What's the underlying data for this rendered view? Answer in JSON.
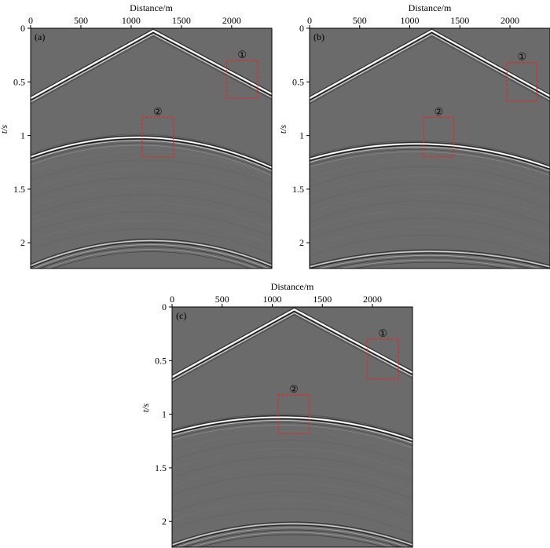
{
  "colors": {
    "background": "#6b6b6b",
    "event": "#ffffff",
    "box": "#e8251f"
  },
  "panels": [
    {
      "label": "(a)",
      "xlabel": "Distance/m",
      "ylabel": "t/s",
      "xticks": [
        0,
        500,
        1000,
        1500,
        2000
      ],
      "yticks": [
        0,
        0.5,
        1,
        1.5,
        2
      ],
      "xlim": [
        0,
        2400
      ],
      "ylim": [
        0,
        2.24
      ],
      "boxes": [
        {
          "label": "①",
          "x": [
            1950,
            2260
          ],
          "t": [
            0.3,
            0.65
          ]
        },
        {
          "label": "②",
          "x": [
            1110,
            1420
          ],
          "t": [
            0.83,
            1.2
          ]
        }
      ]
    },
    {
      "label": "(b)",
      "xlabel": "Distance/m",
      "ylabel": "t/s",
      "xticks": [
        0,
        500,
        1000,
        1500,
        2000
      ],
      "yticks": [
        0,
        0.5,
        1,
        1.5,
        2
      ],
      "xlim": [
        0,
        2400
      ],
      "ylim": [
        0,
        2.24
      ],
      "boxes": [
        {
          "label": "①",
          "x": [
            1970,
            2270
          ],
          "t": [
            0.32,
            0.68
          ]
        },
        {
          "label": "②",
          "x": [
            1140,
            1440
          ],
          "t": [
            0.83,
            1.2
          ]
        }
      ]
    },
    {
      "label": "(c)",
      "xlabel": "Distance/m",
      "ylabel": "t/s",
      "xticks": [
        0,
        500,
        1000,
        1500,
        2000
      ],
      "yticks": [
        0,
        0.5,
        1,
        1.5,
        2
      ],
      "xlim": [
        0,
        2400
      ],
      "ylim": [
        0,
        2.24
      ],
      "boxes": [
        {
          "label": "①",
          "x": [
            1950,
            2260
          ],
          "t": [
            0.3,
            0.67
          ]
        },
        {
          "label": "②",
          "x": [
            1060,
            1370
          ],
          "t": [
            0.82,
            1.18
          ]
        }
      ]
    }
  ],
  "chart_data": [
    {
      "type": "heatmap",
      "panel": "(a)",
      "xlabel": "Distance/m",
      "ylabel": "t/s",
      "xlim": [
        0,
        2400
      ],
      "ylim": [
        0,
        2.24
      ],
      "events": {
        "direct_apex": {
          "x": 1220,
          "t": 0.03
        },
        "direct_edges_t": [
          0.66,
          0.62
        ],
        "reflection1_apex": {
          "x": 1200,
          "t": 1.02
        },
        "reflection1_edges_t": [
          1.2,
          1.3
        ],
        "reflection2_apex": {
          "x": 1200,
          "t": 1.98
        }
      }
    },
    {
      "type": "heatmap",
      "panel": "(b)",
      "xlabel": "Distance/m",
      "ylabel": "t/s",
      "xlim": [
        0,
        2400
      ],
      "ylim": [
        0,
        2.24
      ],
      "events": {
        "direct_apex": {
          "x": 1220,
          "t": 0.03
        },
        "direct_edges_t": [
          0.66,
          0.64
        ],
        "reflection1_apex": {
          "x": 1200,
          "t": 1.08
        },
        "reflection1_edges_t": [
          1.22,
          1.3
        ],
        "reflection2_apex": {
          "x": 1200,
          "t": 2.08
        }
      }
    },
    {
      "type": "heatmap",
      "panel": "(c)",
      "xlabel": "Distance/m",
      "ylabel": "t/s",
      "xlim": [
        0,
        2400
      ],
      "ylim": [
        0,
        2.24
      ],
      "events": {
        "direct_apex": {
          "x": 1220,
          "t": 0.03
        },
        "direct_edges_t": [
          0.66,
          0.62
        ],
        "reflection1_apex": {
          "x": 1200,
          "t": 1.03
        },
        "reflection1_edges_t": [
          1.17,
          1.24
        ],
        "reflection2_apex": {
          "x": 1200,
          "t": 2.02
        }
      }
    }
  ]
}
